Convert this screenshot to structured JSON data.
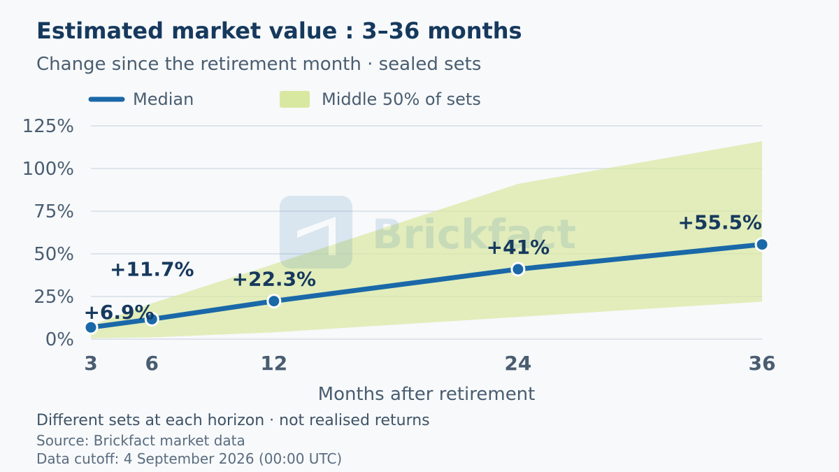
{
  "chart_data": {
    "type": "area",
    "title": "Estimated market value : 3–36 months",
    "subtitle": "Change since the retirement month · sealed sets",
    "xlabel": "Months after retirement",
    "ylabel": "",
    "x": [
      3,
      6,
      12,
      24,
      36
    ],
    "x_tick_labels": [
      "3",
      "6",
      "12",
      "24",
      "36"
    ],
    "y_tick_labels": [
      "0%",
      "25%",
      "50%",
      "75%",
      "100%",
      "125%"
    ],
    "y_ticks": [
      0,
      25,
      50,
      75,
      100,
      125
    ],
    "ylim": [
      0,
      125
    ],
    "xlim": [
      3,
      36
    ],
    "grid": true,
    "legend_position": "top-left",
    "series": [
      {
        "name": "Median",
        "kind": "line",
        "values": [
          6.9,
          11.7,
          22.3,
          41.0,
          55.5
        ],
        "labels": [
          "+6.9%",
          "+11.7%",
          "+22.3%",
          "+41%",
          "+55.5%"
        ],
        "color": "#1a68a8"
      },
      {
        "name": "Middle 50% of sets",
        "kind": "band",
        "lower": [
          0.5,
          1.0,
          4.0,
          13.0,
          22.0
        ],
        "upper": [
          8.0,
          21.0,
          44.0,
          91.0,
          116.0
        ],
        "color": "#d8e8a0"
      }
    ],
    "notes": [
      "Different sets at each horizon · not realised returns"
    ],
    "source": "Source: Brickfact market data",
    "cutoff": "Data cutoff: 4 September 2026 (00:00 UTC)",
    "watermark": "Brickfact"
  }
}
